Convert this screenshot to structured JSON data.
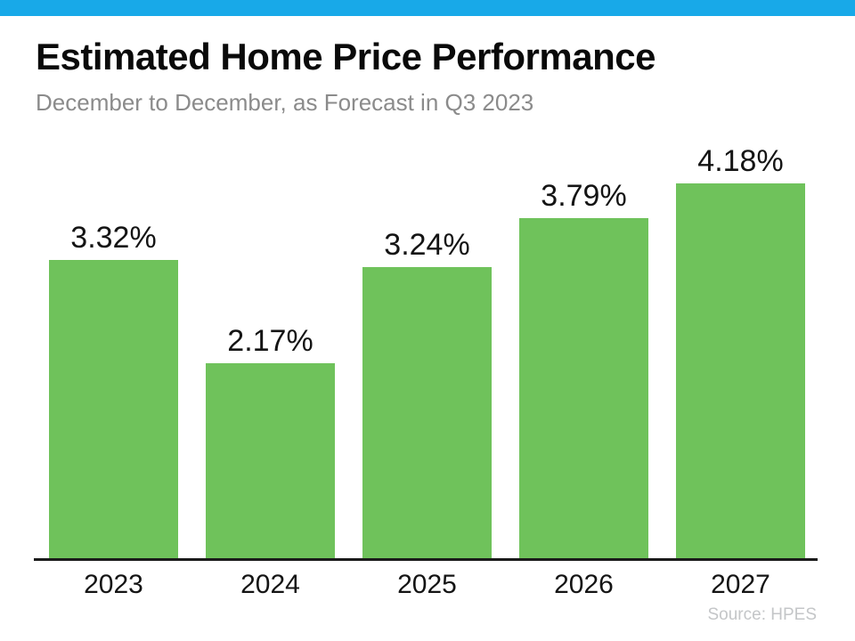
{
  "page": {
    "title": "Estimated Home Price Performance",
    "subtitle": "December to December, as Forecast in Q3 2023",
    "source": "Source: HPES"
  },
  "colors": {
    "accent_top_bar": "#18A9E8",
    "bar_fill": "#6FC25B",
    "title_text": "#0A0A0A",
    "subtitle_text": "#8B8B8B",
    "axis_line": "#1B1B1B",
    "source_text": "#C4C6C8"
  },
  "chart_data": {
    "type": "bar",
    "title": "Estimated Home Price Performance",
    "subtitle": "December to December, as Forecast in Q3 2023",
    "categories": [
      "2023",
      "2024",
      "2025",
      "2026",
      "2027"
    ],
    "values": [
      3.32,
      2.17,
      3.24,
      3.79,
      4.18
    ],
    "labels": [
      "3.32%",
      "2.17%",
      "3.24%",
      "3.79%",
      "4.18%"
    ],
    "xlabel": "",
    "ylabel": "",
    "ylim": [
      0,
      4.6
    ],
    "grid": false,
    "legend": false,
    "source": "Source: HPES"
  }
}
